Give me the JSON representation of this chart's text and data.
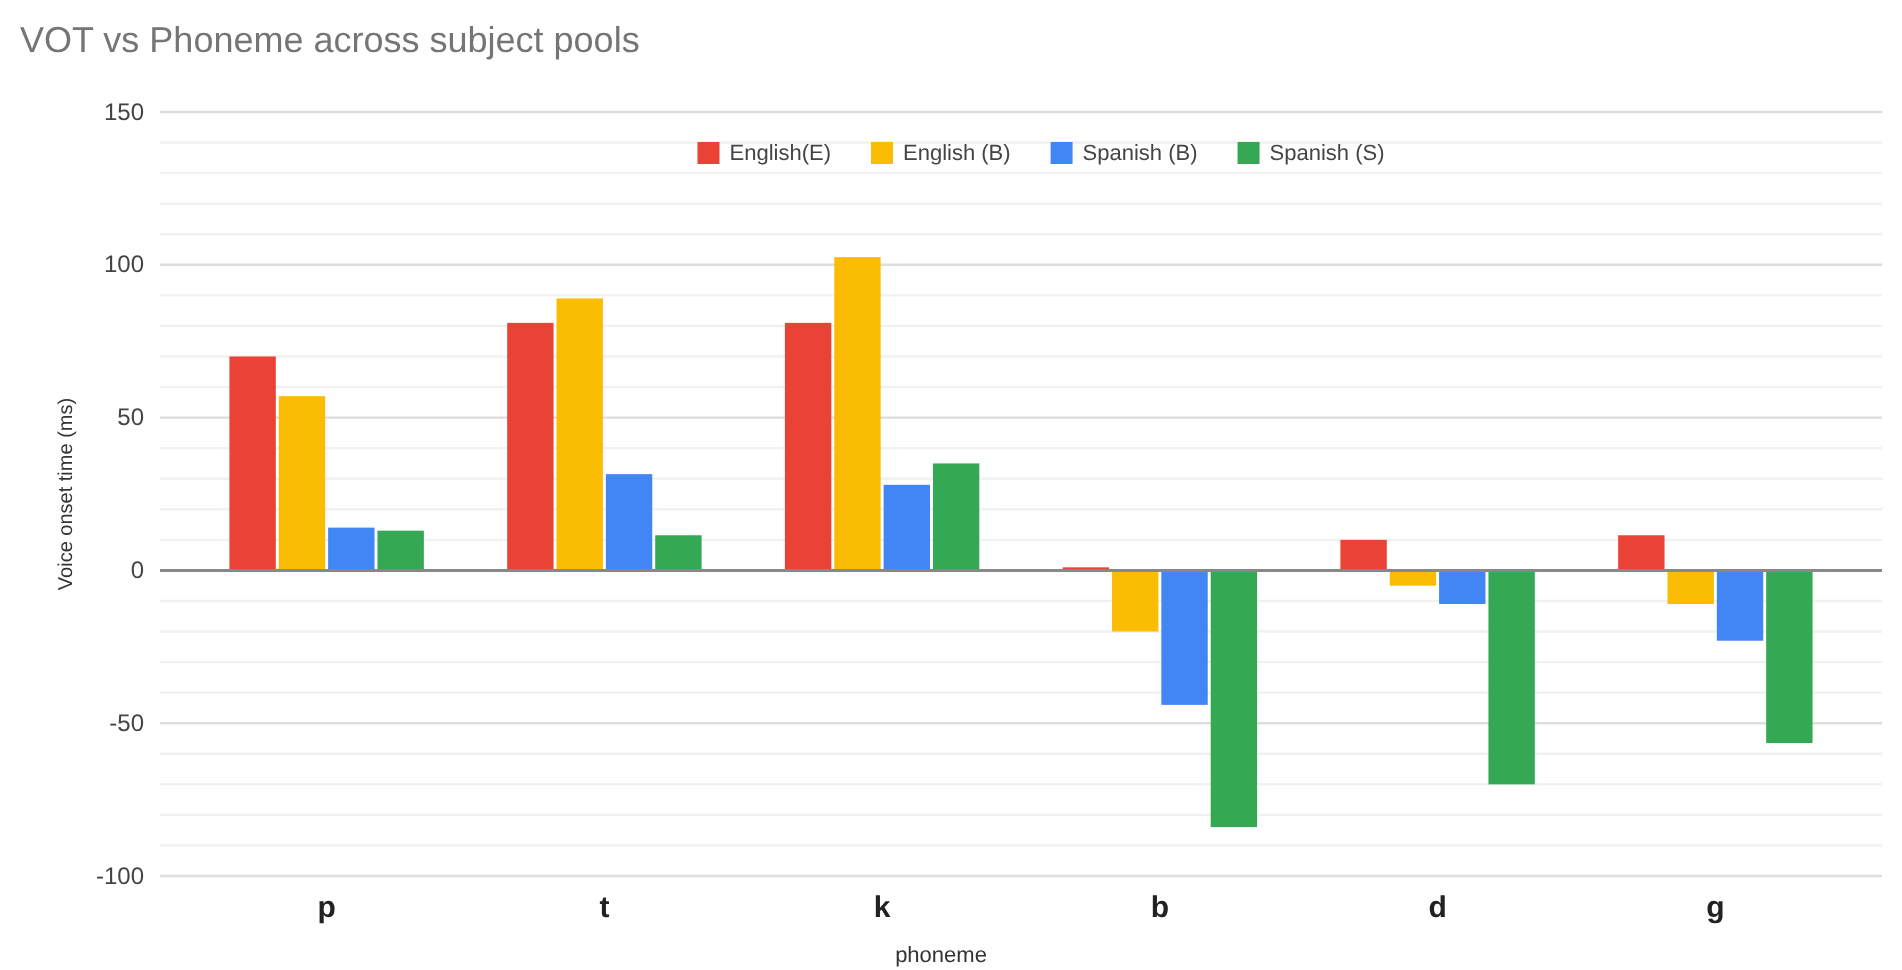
{
  "chart_data": {
    "type": "bar",
    "title": "VOT vs Phoneme across subject pools",
    "xlabel": "phoneme",
    "ylabel": "Voice onset time (ms)",
    "categories": [
      "p",
      "t",
      "k",
      "b",
      "d",
      "g"
    ],
    "series": [
      {
        "name": "English(E)",
        "color": "#ea4335",
        "values": [
          70,
          81,
          81,
          1,
          10,
          11.5
        ]
      },
      {
        "name": "English (B)",
        "color": "#fbbc04",
        "values": [
          57,
          89,
          102.5,
          -20,
          -5,
          -11
        ]
      },
      {
        "name": "Spanish (B)",
        "color": "#4285f4",
        "values": [
          14,
          31.5,
          28,
          -44,
          -11,
          -23
        ]
      },
      {
        "name": "Spanish (S)",
        "color": "#34a853",
        "values": [
          13,
          11.5,
          35,
          -84,
          -70,
          -56.5
        ]
      }
    ],
    "ylim": [
      -100,
      150
    ],
    "yticks": [
      -100,
      {
        "value": -90,
        "label": null
      },
      {
        "value": -80,
        "label": null
      },
      {
        "value": -70,
        "label": null
      },
      {
        "value": -60,
        "label": null
      },
      -50,
      {
        "value": -40,
        "label": null
      },
      {
        "value": -30,
        "label": null
      },
      {
        "value": -20,
        "label": null
      },
      {
        "value": -10,
        "label": null
      },
      0,
      {
        "value": 10,
        "label": null
      },
      {
        "value": 20,
        "label": null
      },
      {
        "value": 30,
        "label": null
      },
      {
        "value": 40,
        "label": null
      },
      50,
      {
        "value": 60,
        "label": null
      },
      {
        "value": 70,
        "label": null
      },
      {
        "value": 80,
        "label": null
      },
      {
        "value": 90,
        "label": null
      },
      100,
      {
        "value": 110,
        "label": null
      },
      {
        "value": 120,
        "label": null
      },
      {
        "value": 130,
        "label": null
      },
      {
        "value": 140,
        "label": null
      },
      150
    ],
    "grid": "y",
    "legend": "top"
  }
}
